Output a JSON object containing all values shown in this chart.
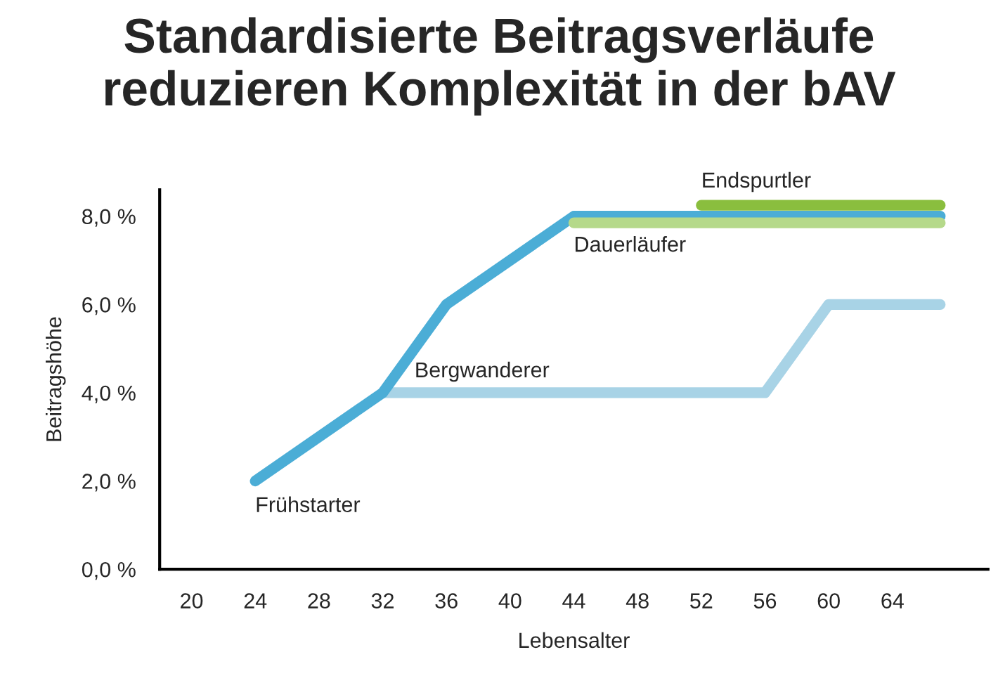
{
  "chart_data": {
    "type": "line",
    "title": "Standardisierte Beitragsverläufe\nreduzieren Komplexität in der bAV",
    "xlabel": "Lebensalter",
    "ylabel": "Beitragshöhe",
    "series": [
      {
        "name": "Bergwanderer",
        "color": "#a8d3e6",
        "x": [
          32,
          56,
          60,
          67
        ],
        "values": [
          4,
          4,
          6,
          6
        ]
      },
      {
        "name": "Frühstarter",
        "color": "#4badd6",
        "x": [
          24,
          32,
          36,
          44,
          67
        ],
        "values": [
          2,
          4,
          6,
          8,
          8
        ]
      },
      {
        "name": "Dauerläufer",
        "color": "#b5d98a",
        "x": [
          44,
          67
        ],
        "values": [
          7.85,
          7.85
        ]
      },
      {
        "name": "Endspurtler",
        "color": "#8abe3e",
        "x": [
          52,
          67
        ],
        "values": [
          8.25,
          8.25
        ]
      }
    ],
    "xlim": [
      18,
      70
    ],
    "xticks": [
      20,
      24,
      28,
      32,
      36,
      40,
      44,
      48,
      52,
      56,
      60,
      64
    ],
    "ylim": [
      0,
      8.6
    ],
    "yticks": [
      {
        "value": 0,
        "label": "0,0 %"
      },
      {
        "value": 2,
        "label": "2,0 %"
      },
      {
        "value": 4,
        "label": "4,0 %"
      },
      {
        "value": 6,
        "label": "6,0 %"
      },
      {
        "value": 8,
        "label": "8,0 %"
      }
    ],
    "grid": false,
    "legend": false,
    "line_style": "solid",
    "marker": "none"
  }
}
